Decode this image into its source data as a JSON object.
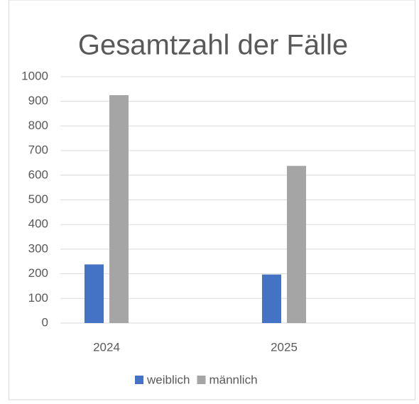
{
  "chart_data": {
    "type": "bar",
    "title": "Gesamtzahl der Fälle",
    "categories": [
      "2024",
      "2025"
    ],
    "series": [
      {
        "name": "weiblich",
        "color": "#4472c4",
        "values": [
          238,
          197
        ]
      },
      {
        "name": "männlich",
        "color": "#a5a5a5",
        "values": [
          925,
          638
        ]
      }
    ],
    "ylim": [
      0,
      1000
    ],
    "yticks": [
      0,
      100,
      200,
      300,
      400,
      500,
      600,
      700,
      800,
      900,
      1000
    ],
    "grid": true,
    "legend": "bottom"
  }
}
